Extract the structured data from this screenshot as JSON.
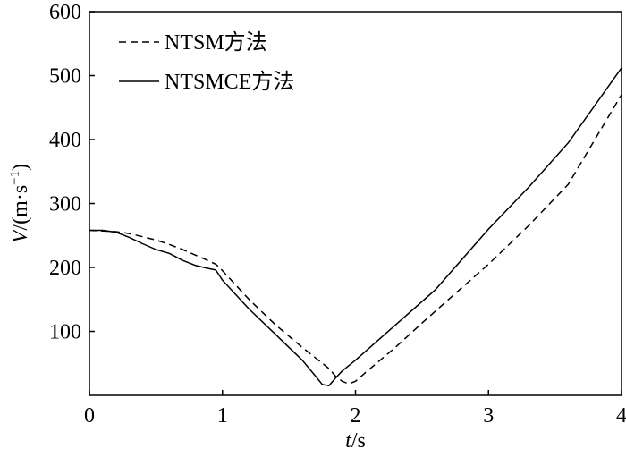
{
  "chart_data": {
    "type": "line",
    "title": "",
    "xlabel": {
      "italic": "t",
      "rest": "/s"
    },
    "ylabel": {
      "italic": "V",
      "rest": "/(m·s",
      "sup": "−1",
      "close": ")"
    },
    "xlim": [
      0,
      4
    ],
    "ylim": [
      0,
      600
    ],
    "xticks": [
      0,
      1,
      2,
      3,
      4
    ],
    "xtick_labels": [
      "0",
      "1",
      "2",
      "3",
      "4"
    ],
    "yticks": [
      100,
      200,
      300,
      400,
      500,
      600
    ],
    "ytick_labels": [
      "100",
      "200",
      "300",
      "400",
      "500",
      "600"
    ],
    "grid": false,
    "legend_position": "top-left",
    "colors": {
      "line": "#000000",
      "axes": "#000000"
    },
    "series": [
      {
        "name": "NTSM方法",
        "style": "dashed",
        "x": [
          0,
          0.1,
          0.2,
          0.3,
          0.4,
          0.5,
          0.6,
          0.7,
          0.8,
          0.9,
          0.95,
          1.0,
          1.2,
          1.4,
          1.6,
          1.8,
          1.85,
          1.9,
          1.95,
          2.0,
          2.1,
          2.3,
          2.5,
          2.7,
          3.0,
          3.3,
          3.6,
          4.0
        ],
        "y": [
          258,
          257,
          256,
          253,
          248,
          243,
          236,
          228,
          219,
          210,
          205,
          195,
          150,
          110,
          75,
          42,
          30,
          22,
          18,
          22,
          40,
          75,
          113,
          150,
          205,
          265,
          330,
          470
        ]
      },
      {
        "name": "NTSMCE方法",
        "style": "solid",
        "x": [
          0,
          0.1,
          0.2,
          0.3,
          0.4,
          0.5,
          0.6,
          0.7,
          0.8,
          0.9,
          0.95,
          1.0,
          1.2,
          1.4,
          1.6,
          1.7,
          1.75,
          1.8,
          1.85,
          1.9,
          2.0,
          2.3,
          2.6,
          3.0,
          3.3,
          3.6,
          4.0
        ],
        "y": [
          258,
          258,
          255,
          247,
          237,
          228,
          222,
          211,
          203,
          198,
          196,
          180,
          135,
          95,
          55,
          30,
          17,
          15,
          27,
          38,
          55,
          110,
          165,
          260,
          325,
          395,
          512
        ]
      }
    ]
  }
}
